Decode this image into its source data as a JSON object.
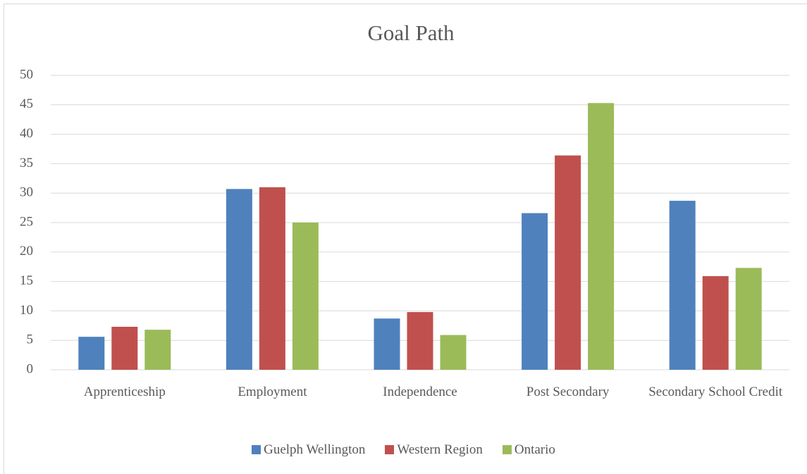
{
  "chart_data": {
    "type": "bar",
    "title": "Goal Path",
    "categories": [
      "Apprenticeship",
      "Employment",
      "Independence",
      "Post Secondary",
      "Secondary School Credit"
    ],
    "series": [
      {
        "name": "Guelph Wellington",
        "color": "#4f81bd",
        "values": [
          5.6,
          30.7,
          8.7,
          26.6,
          28.7
        ]
      },
      {
        "name": "Western Region",
        "color": "#c0504d",
        "values": [
          7.3,
          31.0,
          9.8,
          36.4,
          15.9
        ]
      },
      {
        "name": "Ontario",
        "color": "#9bbb59",
        "values": [
          6.8,
          25.0,
          5.9,
          45.3,
          17.3
        ]
      }
    ],
    "ylim": [
      0,
      50
    ],
    "yticks": [
      0,
      5,
      10,
      15,
      20,
      25,
      30,
      35,
      40,
      45,
      50
    ],
    "grid": true,
    "legend": "bottom"
  }
}
